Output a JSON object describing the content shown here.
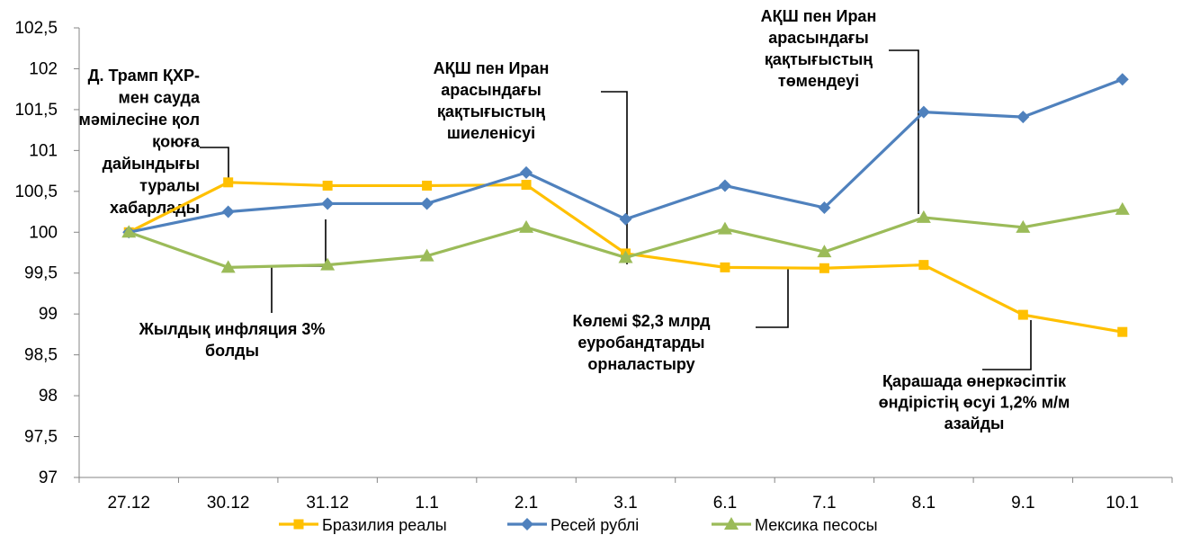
{
  "chart_data": {
    "type": "line",
    "categories": [
      "27.12",
      "30.12",
      "31.12",
      "1.1",
      "2.1",
      "3.1",
      "6.1",
      "7.1",
      "8.1",
      "9.1",
      "10.1"
    ],
    "ylim": [
      97,
      102.5
    ],
    "yticks": [
      "97",
      "97,5",
      "98",
      "98,5",
      "99",
      "99,5",
      "100",
      "100,5",
      "101",
      "101,5",
      "102",
      "102,5"
    ],
    "grid": false,
    "legend_position": "bottom",
    "series": [
      {
        "name": "Бразилия реалы",
        "color": "#FFC000",
        "marker": "square",
        "values": [
          100.0,
          100.61,
          100.57,
          100.57,
          100.58,
          99.74,
          99.57,
          99.56,
          99.6,
          98.99,
          98.78
        ]
      },
      {
        "name": "Ресей рублі",
        "color": "#4F81BD",
        "marker": "diamond",
        "values": [
          100.0,
          100.25,
          100.35,
          100.35,
          100.73,
          100.16,
          100.57,
          100.3,
          101.47,
          101.41,
          101.87
        ]
      },
      {
        "name": "Мексика песосы",
        "color": "#9BBB59",
        "marker": "triangle",
        "values": [
          100.0,
          99.57,
          99.6,
          99.71,
          100.06,
          99.69,
          100.04,
          99.76,
          100.18,
          100.06,
          100.28
        ]
      }
    ],
    "annotations": [
      {
        "lines": [
          "Д. Трамп ҚХР-",
          "мен сауда",
          "мәмілесіне қол",
          "қоюға",
          "дайындығы",
          "туралы",
          "хабарлады"
        ]
      },
      {
        "lines": [
          "Жылдық инфляция 3%",
          "болды"
        ]
      },
      {
        "lines": [
          "АҚШ пен Иран",
          "арасындағы",
          "қақтығыстың",
          "шиеленісуі"
        ]
      },
      {
        "lines": [
          "Көлемі $2,3 млрд",
          "еуробандтарды",
          "орналастыру"
        ]
      },
      {
        "lines": [
          "АҚШ пен Иран",
          "арасындағы",
          "қақтығыстың",
          "төмендеуі"
        ]
      },
      {
        "lines": [
          "Қарашада өнеркәсіптік",
          "өндірістің өсуі 1,2% м/м",
          "азайды"
        ]
      }
    ]
  }
}
